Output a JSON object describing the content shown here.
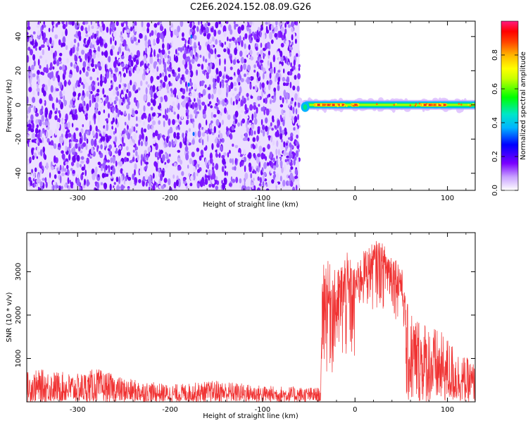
{
  "title": "C2E6.2024.152.08.09.G26",
  "chart_data": [
    {
      "type": "heatmap",
      "xlabel": "Height of straight line (km)",
      "ylabel": "Frequency (Hz)",
      "xlim": [
        -355,
        130
      ],
      "ylim": [
        -50,
        49
      ],
      "xticks": [
        -300,
        -200,
        -100,
        0,
        100
      ],
      "yticks": [
        -40,
        -20,
        0,
        20,
        40
      ],
      "noise_region_x": [
        -355,
        -60
      ],
      "signal_band": {
        "x_range": [
          -60,
          130
        ],
        "center_freq_hz": 0,
        "bright_segments": [
          [
            -45,
            -10
          ],
          [
            -5,
            5
          ],
          [
            70,
            100
          ]
        ]
      },
      "colorbar": {
        "label": "Normalized spectral amplitude",
        "range": [
          0,
          1
        ],
        "ticks": [
          "0.0",
          "0.2",
          "0.4",
          "0.6",
          "0.8"
        ],
        "tick_values": [
          0.0,
          0.2,
          0.4,
          0.6,
          0.8
        ]
      }
    },
    {
      "type": "line",
      "xlabel": "Height of straight line (km)",
      "ylabel": "SNR (10 * v/v)",
      "xlim": [
        -355,
        130
      ],
      "ylim": [
        0,
        3900
      ],
      "xticks": [
        -300,
        -200,
        -100,
        0,
        100
      ],
      "yticks": [
        1000,
        2000,
        3000
      ],
      "series": [
        {
          "color": "#f03232",
          "envelope": [
            {
              "x": -355,
              "y": 700
            },
            {
              "x": -340,
              "y": 750
            },
            {
              "x": -300,
              "y": 650
            },
            {
              "x": -280,
              "y": 780
            },
            {
              "x": -250,
              "y": 550
            },
            {
              "x": -200,
              "y": 400
            },
            {
              "x": -180,
              "y": 430
            },
            {
              "x": -150,
              "y": 500
            },
            {
              "x": -100,
              "y": 380
            },
            {
              "x": -60,
              "y": 350
            },
            {
              "x": -37,
              "y": 330
            },
            {
              "x": -35,
              "y": 3400
            },
            {
              "x": -20,
              "y": 3000
            },
            {
              "x": -10,
              "y": 3500
            },
            {
              "x": 0,
              "y": 3100
            },
            {
              "x": 10,
              "y": 3500
            },
            {
              "x": 25,
              "y": 3750
            },
            {
              "x": 40,
              "y": 3450
            },
            {
              "x": 50,
              "y": 3200
            },
            {
              "x": 55,
              "y": 2300
            },
            {
              "x": 70,
              "y": 2000
            },
            {
              "x": 100,
              "y": 1500
            },
            {
              "x": 115,
              "y": 1100
            },
            {
              "x": 130,
              "y": 900
            }
          ]
        }
      ]
    }
  ]
}
